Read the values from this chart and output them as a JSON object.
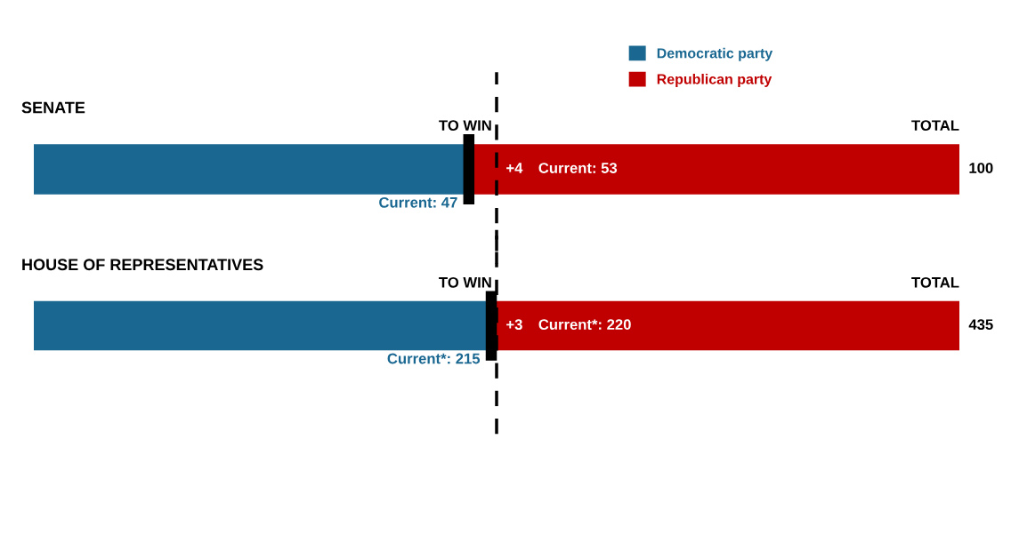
{
  "chart_data": [
    {
      "type": "bar",
      "title": "SENATE",
      "orientation": "horizontal",
      "stacked": true,
      "categories": [
        null
      ],
      "xlim": [
        0,
        100
      ],
      "tick_labels": false,
      "legend": "top",
      "series": [
        {
          "name": "Democratic party",
          "color": "#1a6891",
          "values": [
            47
          ],
          "value_labels": [
            "Current: 47"
          ]
        },
        {
          "name": "Republican party",
          "color": "#c00000",
          "values": [
            53
          ],
          "value_labels": [
            "Current: 53"
          ]
        }
      ],
      "ref_lines": [
        {
          "axis": "x",
          "value": 50,
          "label": null,
          "color": "#000000",
          "line_style": "dashed"
        },
        {
          "axis": "x",
          "value": 47,
          "label": null,
          "color": "#000000",
          "line_style": "solid"
        }
      ],
      "annotations": [
        {
          "text": "TO WIN",
          "x": 50
        },
        "+4",
        "TOTAL",
        {
          "text": "100",
          "x": 100
        }
      ]
    },
    {
      "type": "bar",
      "title": "HOUSE OF REPRESENTATIVES",
      "orientation": "horizontal",
      "stacked": true,
      "categories": [
        null
      ],
      "xlim": [
        0,
        435
      ],
      "tick_labels": false,
      "series": [
        {
          "color": "#1a6891",
          "values": [
            215
          ],
          "value_labels": [
            "Current*: 215"
          ]
        },
        {
          "color": "#c00000",
          "values": [
            220
          ],
          "value_labels": [
            "Current*: 220"
          ]
        }
      ],
      "ref_lines": [
        {
          "axis": "x",
          "value": 217.5,
          "label": null,
          "color": "#000000",
          "line_style": "dashed"
        },
        {
          "axis": "x",
          "value": 215,
          "label": null,
          "color": "#000000",
          "line_style": "solid"
        }
      ],
      "annotations": [
        {
          "text": "TO WIN",
          "x": 217.5
        },
        "+3",
        "TOTAL",
        {
          "text": "435",
          "x": 435
        }
      ]
    }
  ]
}
